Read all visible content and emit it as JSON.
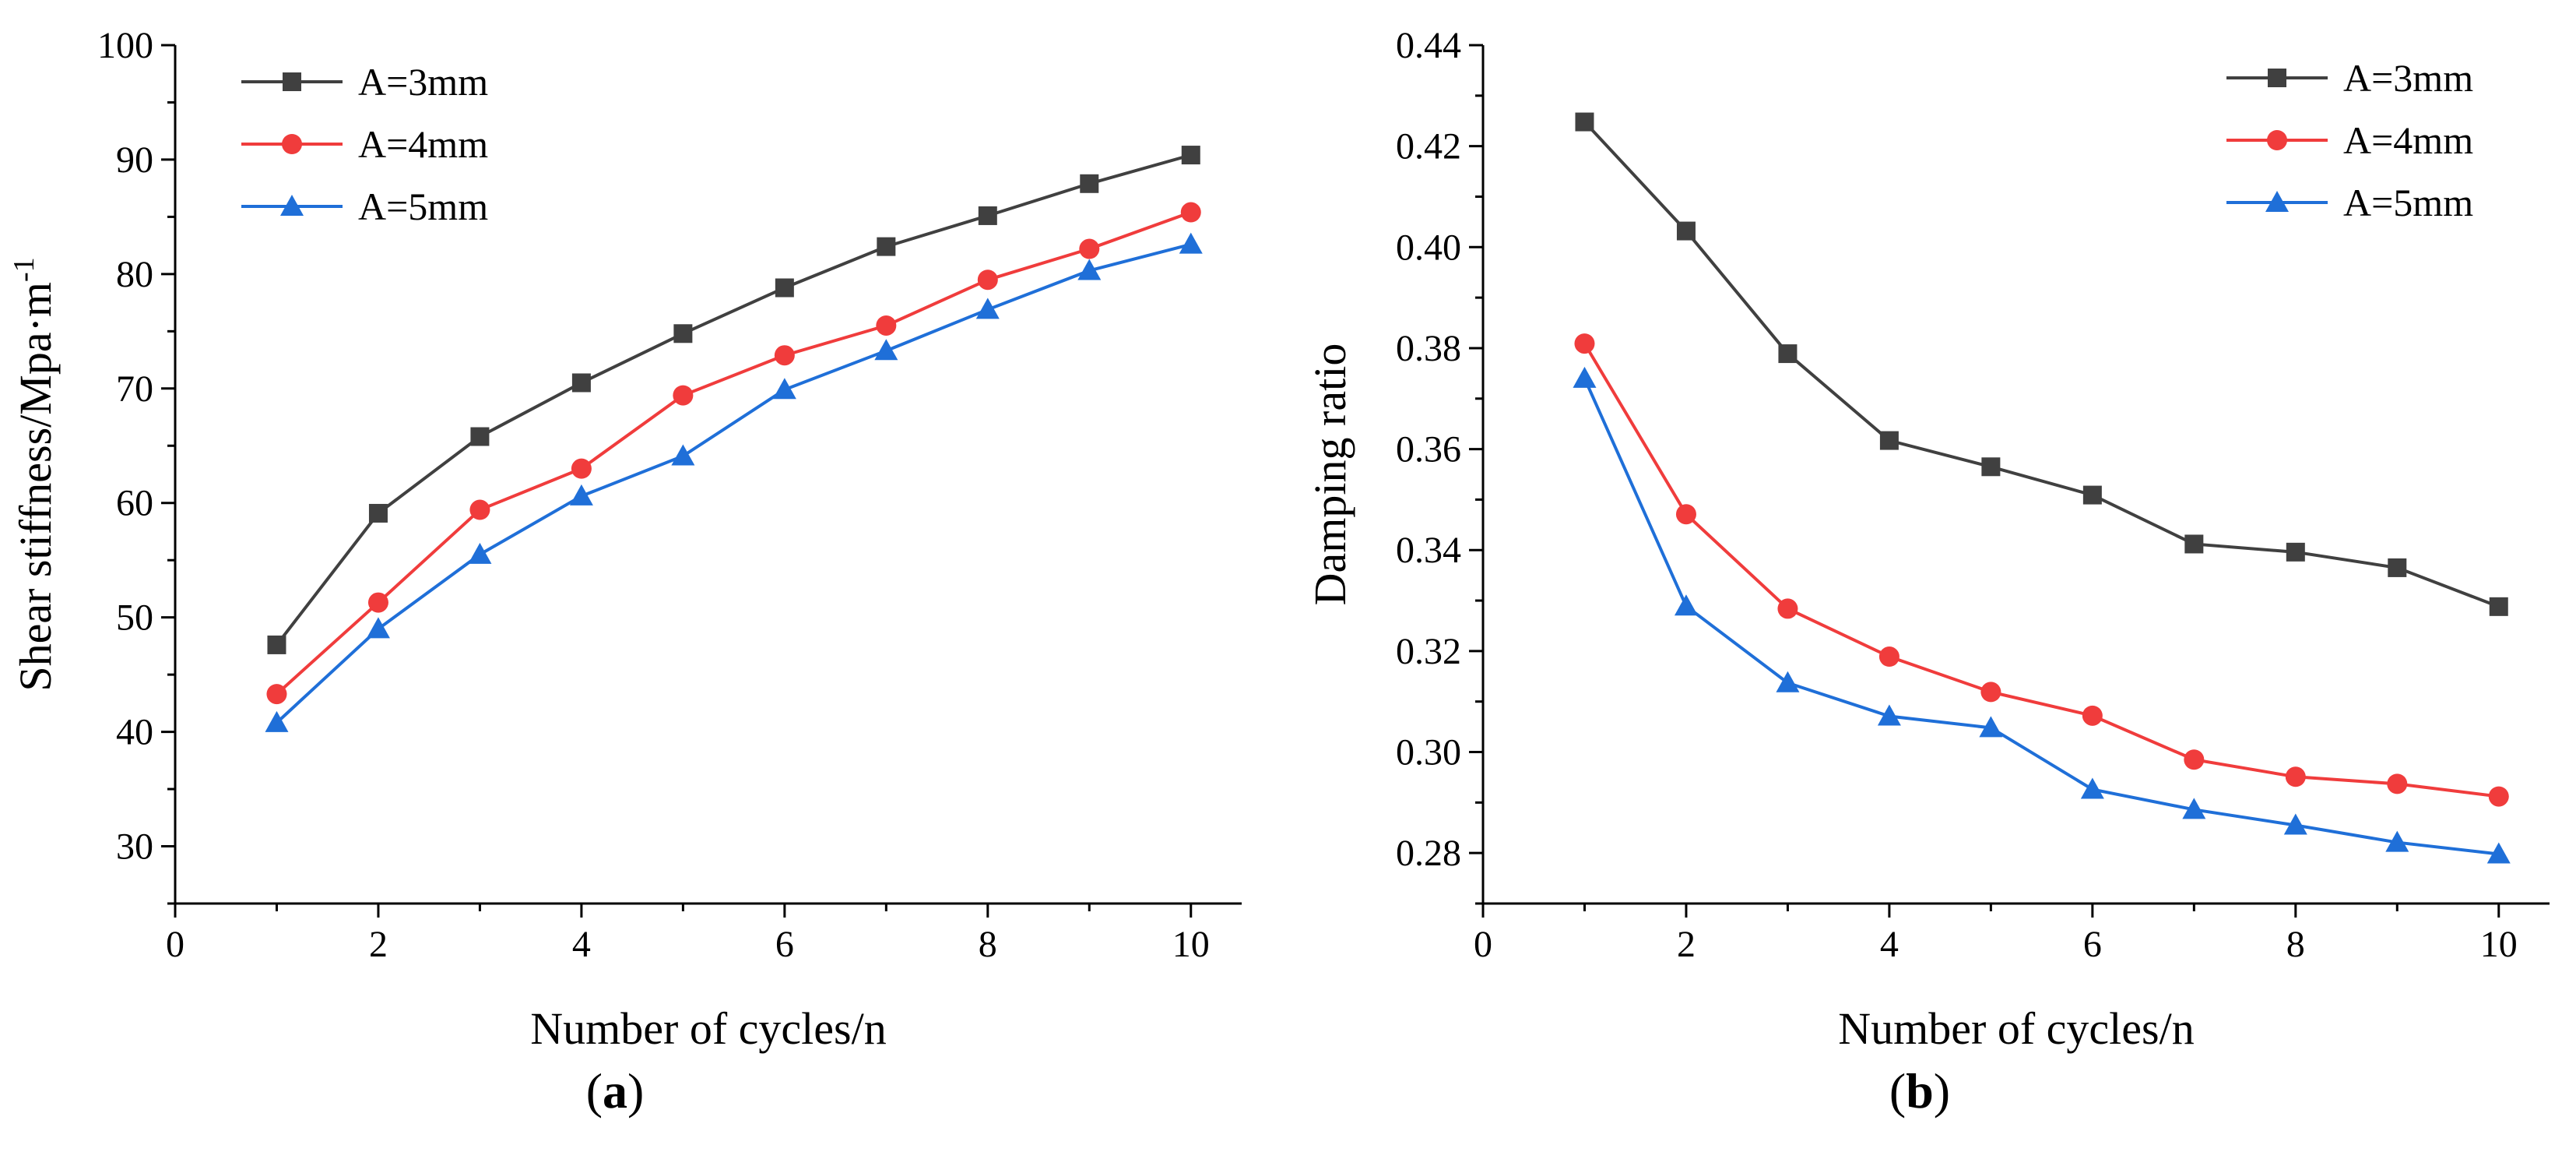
{
  "figure": {
    "panel_labels": [
      {
        "open": "(",
        "letter": "a",
        "close": ")"
      },
      {
        "open": "(",
        "letter": "b",
        "close": ")"
      }
    ]
  },
  "chart_data": [
    {
      "type": "line",
      "title": "",
      "xlabel": "Number of cycles/n",
      "ylabel": "Shear stiffness/Mpa·m",
      "ylabel_superscript": "-1",
      "xlim": [
        0,
        10.5
      ],
      "ylim": [
        25,
        100
      ],
      "xticks": [
        0,
        2,
        4,
        6,
        8,
        10
      ],
      "yticks": [
        30,
        40,
        50,
        60,
        70,
        80,
        90,
        100
      ],
      "ytick_decimals": 0,
      "legend_position": "top-left",
      "x": [
        1,
        2,
        3,
        4,
        5,
        6,
        7,
        8,
        9,
        10
      ],
      "series": [
        {
          "name": "A=3mm",
          "color": "#404040",
          "marker": "square",
          "values": [
            47.6,
            59.1,
            65.8,
            70.5,
            74.8,
            78.8,
            82.4,
            85.1,
            87.9,
            90.4
          ]
        },
        {
          "name": "A=4mm",
          "color": "#f03c3c",
          "marker": "circle",
          "values": [
            43.3,
            51.3,
            59.4,
            63.0,
            69.4,
            72.9,
            75.5,
            79.5,
            82.2,
            85.4
          ]
        },
        {
          "name": "A=5mm",
          "color": "#1f6fd8",
          "marker": "triangle",
          "values": [
            40.8,
            49.0,
            55.5,
            60.6,
            64.1,
            69.9,
            73.3,
            76.9,
            80.3,
            82.6
          ]
        }
      ]
    },
    {
      "type": "line",
      "title": "",
      "xlabel": "Number of cycles/n",
      "ylabel": "Damping ratio",
      "xlim": [
        0,
        10.5
      ],
      "ylim": [
        0.27,
        0.44
      ],
      "xticks": [
        0,
        2,
        4,
        6,
        8,
        10
      ],
      "yticks": [
        0.28,
        0.3,
        0.32,
        0.34,
        0.36,
        0.38,
        0.4,
        0.42,
        0.44
      ],
      "ytick_decimals": 2,
      "legend_position": "top-right",
      "x": [
        1,
        2,
        3,
        4,
        5,
        6,
        7,
        8,
        9,
        10
      ],
      "series": [
        {
          "name": "A=3mm",
          "color": "#404040",
          "marker": "square",
          "values": [
            0.4248,
            0.4032,
            0.3789,
            0.3617,
            0.3565,
            0.3509,
            0.3412,
            0.3396,
            0.3365,
            0.3288
          ]
        },
        {
          "name": "A=4mm",
          "color": "#f03c3c",
          "marker": "circle",
          "values": [
            0.3809,
            0.3471,
            0.3284,
            0.3189,
            0.3119,
            0.3072,
            0.2985,
            0.2951,
            0.2937,
            0.2912
          ]
        },
        {
          "name": "A=5mm",
          "color": "#1f6fd8",
          "marker": "triangle",
          "values": [
            0.374,
            0.3289,
            0.3137,
            0.3071,
            0.3048,
            0.2926,
            0.2886,
            0.2855,
            0.2821,
            0.2798
          ]
        }
      ]
    }
  ]
}
